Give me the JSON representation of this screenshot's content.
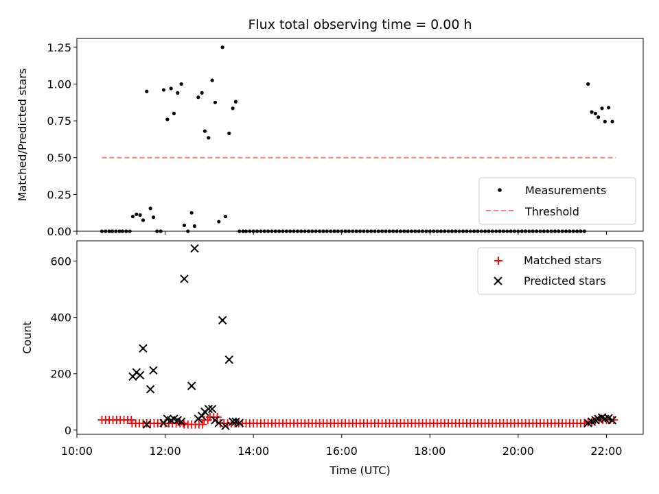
{
  "title": "Flux total observing time = 0.00 h",
  "colors": {
    "measurements": "#000000",
    "threshold": "#ff7f7f",
    "matched": "#ff0000",
    "predicted": "#000000"
  },
  "chart_data": [
    {
      "type": "scatter",
      "title": "Flux total observing time = 0.00 h",
      "ylabel": "Matched/Predicted stars",
      "xlim": [
        "10:00",
        "22:50"
      ],
      "ylim": [
        0,
        1.31
      ],
      "yticks": [
        "0.00",
        "0.25",
        "0.50",
        "0.75",
        "1.00",
        "1.25"
      ],
      "legend": "bottom-right",
      "series": [
        {
          "name": "Measurements",
          "marker": "dot",
          "points": [
            [
              "10:34",
              0
            ],
            [
              "10:39",
              0
            ],
            [
              "10:44",
              0
            ],
            [
              "10:48",
              0
            ],
            [
              "10:53",
              0
            ],
            [
              "10:58",
              0
            ],
            [
              "11:02",
              0
            ],
            [
              "11:07",
              0
            ],
            [
              "11:12",
              0
            ],
            [
              "11:16",
              0.1
            ],
            [
              "11:21",
              0.115
            ],
            [
              "11:26",
              0.11
            ],
            [
              "11:30",
              0.075
            ],
            [
              "11:35",
              0.95
            ],
            [
              "11:40",
              0.155
            ],
            [
              "11:44",
              0.095
            ],
            [
              "11:49",
              0
            ],
            [
              "11:54",
              0
            ],
            [
              "11:58",
              0.96
            ],
            [
              "12:03",
              0.76
            ],
            [
              "12:08",
              0.97
            ],
            [
              "12:12",
              0.8
            ],
            [
              "12:17",
              0.94
            ],
            [
              "12:22",
              1.0
            ],
            [
              "12:26",
              0.04
            ],
            [
              "12:31",
              0
            ],
            [
              "12:36",
              0.125
            ],
            [
              "12:40",
              0.035
            ],
            [
              "12:45",
              0.91
            ],
            [
              "12:50",
              0.94
            ],
            [
              "12:54",
              0.68
            ],
            [
              "12:59",
              0.635
            ],
            [
              "13:04",
              1.025
            ],
            [
              "13:08",
              0.875
            ],
            [
              "13:13",
              0.065
            ],
            [
              "13:18",
              1.25
            ],
            [
              "13:22",
              0.1
            ],
            [
              "13:27",
              0.665
            ],
            [
              "13:32",
              0.835
            ],
            [
              "13:36",
              0.88
            ],
            [
              "13:41",
              0
            ],
            [
              "13:46",
              0
            ],
            [
              "13:50",
              0
            ],
            [
              "13:55",
              0
            ],
            [
              "14:00",
              0
            ],
            [
              "14:05",
              0
            ],
            [
              "14:10",
              0
            ],
            [
              "14:15",
              0
            ],
            [
              "14:20",
              0
            ],
            [
              "14:25",
              0
            ],
            [
              "14:30",
              0
            ],
            [
              "14:35",
              0
            ],
            [
              "14:40",
              0
            ],
            [
              "14:45",
              0
            ],
            [
              "14:50",
              0
            ],
            [
              "14:55",
              0
            ],
            [
              "15:00",
              0
            ],
            [
              "15:05",
              0
            ],
            [
              "15:10",
              0
            ],
            [
              "15:15",
              0
            ],
            [
              "15:20",
              0
            ],
            [
              "15:25",
              0
            ],
            [
              "15:30",
              0
            ],
            [
              "15:35",
              0
            ],
            [
              "15:40",
              0
            ],
            [
              "15:45",
              0
            ],
            [
              "15:50",
              0
            ],
            [
              "15:55",
              0
            ],
            [
              "16:00",
              0
            ],
            [
              "16:05",
              0
            ],
            [
              "16:10",
              0
            ],
            [
              "16:15",
              0
            ],
            [
              "16:20",
              0
            ],
            [
              "16:25",
              0
            ],
            [
              "16:30",
              0
            ],
            [
              "16:35",
              0
            ],
            [
              "16:40",
              0
            ],
            [
              "16:45",
              0
            ],
            [
              "16:50",
              0
            ],
            [
              "16:55",
              0
            ],
            [
              "17:00",
              0
            ],
            [
              "17:05",
              0
            ],
            [
              "17:10",
              0
            ],
            [
              "17:15",
              0
            ],
            [
              "17:20",
              0
            ],
            [
              "17:25",
              0
            ],
            [
              "17:30",
              0
            ],
            [
              "17:35",
              0
            ],
            [
              "17:40",
              0
            ],
            [
              "17:45",
              0
            ],
            [
              "17:50",
              0
            ],
            [
              "17:55",
              0
            ],
            [
              "18:00",
              0
            ],
            [
              "18:05",
              0
            ],
            [
              "18:10",
              0
            ],
            [
              "18:15",
              0
            ],
            [
              "18:20",
              0
            ],
            [
              "18:25",
              0
            ],
            [
              "18:30",
              0
            ],
            [
              "18:35",
              0
            ],
            [
              "18:40",
              0
            ],
            [
              "18:45",
              0
            ],
            [
              "18:50",
              0
            ],
            [
              "18:55",
              0
            ],
            [
              "19:00",
              0
            ],
            [
              "19:05",
              0
            ],
            [
              "19:10",
              0
            ],
            [
              "19:15",
              0
            ],
            [
              "19:20",
              0
            ],
            [
              "19:25",
              0
            ],
            [
              "19:30",
              0
            ],
            [
              "19:35",
              0
            ],
            [
              "19:40",
              0
            ],
            [
              "19:45",
              0
            ],
            [
              "19:50",
              0
            ],
            [
              "19:55",
              0
            ],
            [
              "20:00",
              0
            ],
            [
              "20:05",
              0
            ],
            [
              "20:10",
              0
            ],
            [
              "20:15",
              0
            ],
            [
              "20:20",
              0
            ],
            [
              "20:25",
              0
            ],
            [
              "20:30",
              0
            ],
            [
              "20:35",
              0
            ],
            [
              "20:40",
              0
            ],
            [
              "20:45",
              0
            ],
            [
              "20:50",
              0
            ],
            [
              "20:55",
              0
            ],
            [
              "21:00",
              0
            ],
            [
              "21:05",
              0
            ],
            [
              "21:10",
              0
            ],
            [
              "21:15",
              0
            ],
            [
              "21:20",
              0
            ],
            [
              "21:25",
              0
            ],
            [
              "21:30",
              0
            ],
            [
              "21:35",
              1.0
            ],
            [
              "21:40",
              0.81
            ],
            [
              "21:45",
              0.8
            ],
            [
              "21:49",
              0.775
            ],
            [
              "21:54",
              0.835
            ],
            [
              "21:58",
              0.745
            ],
            [
              "22:03",
              0.84
            ],
            [
              "22:08",
              0.745
            ]
          ]
        },
        {
          "name": "Threshold",
          "style": "dashed-line",
          "x": [
            "10:34",
            "22:13"
          ],
          "y": [
            0.5,
            0.5
          ]
        }
      ]
    },
    {
      "type": "scatter",
      "xlabel": "Time (UTC)",
      "ylabel": "Count",
      "xlim": [
        "10:00",
        "22:50"
      ],
      "ylim": [
        -15,
        672
      ],
      "yticks": [
        "0",
        "200",
        "400",
        "600"
      ],
      "xticks": [
        "10:00",
        "12:00",
        "14:00",
        "16:00",
        "18:00",
        "20:00",
        "22:00"
      ],
      "legend": "top-right",
      "matched_interval_minutes": 5,
      "matched_runs": [
        {
          "start": "10:34",
          "end": "11:14",
          "value": 36
        },
        {
          "start": "11:15",
          "end": "12:25",
          "value": 24
        },
        {
          "start": "12:26",
          "end": "12:52",
          "value": 20
        },
        {
          "start": "12:53",
          "end": "13:00",
          "value": 36
        },
        {
          "start": "13:01",
          "end": "13:14",
          "value": 46
        },
        {
          "start": "13:15",
          "end": "21:34",
          "value": 24
        },
        {
          "start": "21:35",
          "end": "21:44",
          "value": 28
        },
        {
          "start": "21:45",
          "end": "22:13",
          "value": 36
        }
      ],
      "series": [
        {
          "name": "Matched stars",
          "marker": "plus"
        },
        {
          "name": "Predicted stars",
          "marker": "x",
          "points": [
            [
              "11:16",
              190
            ],
            [
              "11:21",
              205
            ],
            [
              "11:26",
              195
            ],
            [
              "11:30",
              290
            ],
            [
              "11:35",
              20
            ],
            [
              "11:40",
              145
            ],
            [
              "11:44",
              212
            ],
            [
              "11:58",
              25
            ],
            [
              "12:03",
              40
            ],
            [
              "12:08",
              35
            ],
            [
              "12:12",
              40
            ],
            [
              "12:17",
              35
            ],
            [
              "12:22",
              30
            ],
            [
              "12:26",
              537
            ],
            [
              "12:36",
              157
            ],
            [
              "12:40",
              645
            ],
            [
              "12:45",
              40
            ],
            [
              "12:50",
              50
            ],
            [
              "12:54",
              65
            ],
            [
              "12:59",
              75
            ],
            [
              "13:04",
              75
            ],
            [
              "13:08",
              35
            ],
            [
              "13:13",
              25
            ],
            [
              "13:18",
              390
            ],
            [
              "13:22",
              15
            ],
            [
              "13:27",
              250
            ],
            [
              "13:32",
              30
            ],
            [
              "13:36",
              30
            ],
            [
              "13:41",
              25
            ],
            [
              "21:35",
              25
            ],
            [
              "21:40",
              30
            ],
            [
              "21:45",
              35
            ],
            [
              "21:49",
              40
            ],
            [
              "21:54",
              45
            ],
            [
              "21:58",
              40
            ],
            [
              "22:03",
              42
            ],
            [
              "22:08",
              35
            ]
          ]
        }
      ]
    }
  ]
}
